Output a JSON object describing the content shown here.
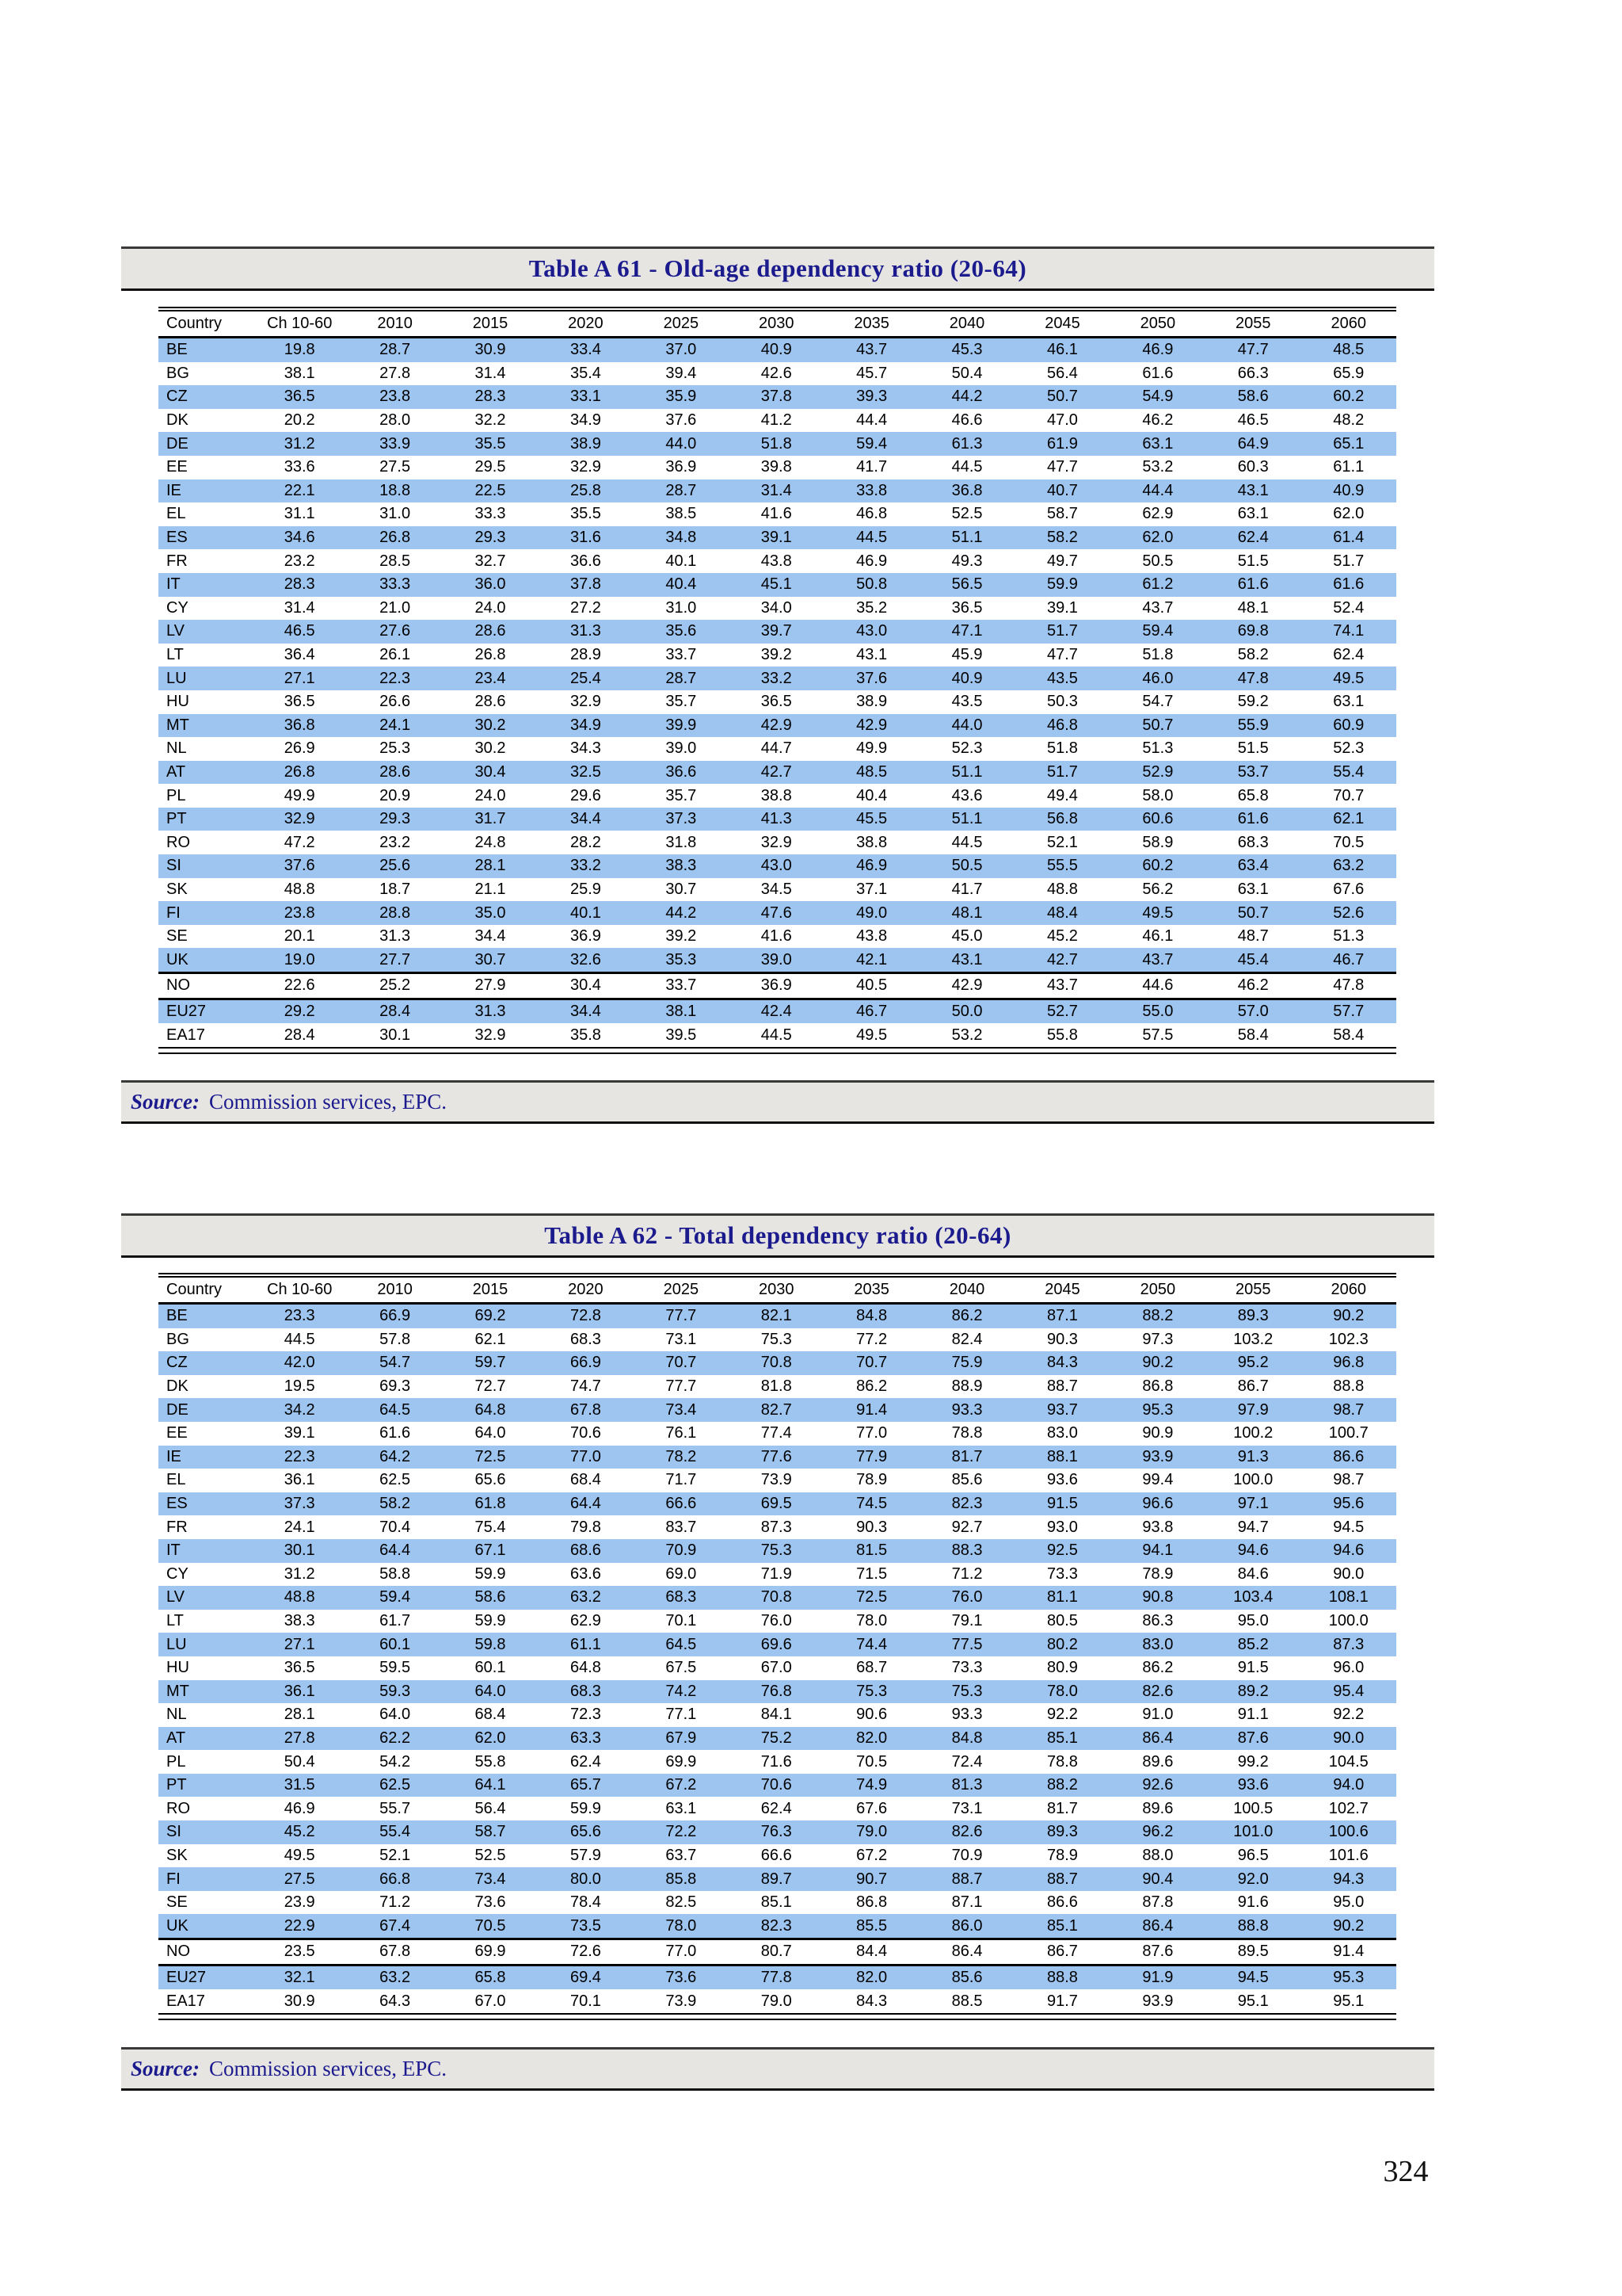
{
  "page": {
    "number": "324"
  },
  "colors": {
    "row_stripe": "#9dc5f0",
    "bar_background": "#e7e5e2",
    "title_text": "#1b1b8e"
  },
  "tables": [
    {
      "title": "Table A 61 - Old-age dependency ratio (20-64)",
      "source_label": "Source:",
      "source_text": "Commission services, EPC.",
      "columns": [
        "Country",
        "Ch 10-60",
        "2010",
        "2015",
        "2020",
        "2025",
        "2030",
        "2035",
        "2040",
        "2045",
        "2050",
        "2055",
        "2060"
      ],
      "group_breaks_after": [
        "UK",
        "NO"
      ],
      "rows": [
        [
          "BE",
          "19.8",
          "28.7",
          "30.9",
          "33.4",
          "37.0",
          "40.9",
          "43.7",
          "45.3",
          "46.1",
          "46.9",
          "47.7",
          "48.5"
        ],
        [
          "BG",
          "38.1",
          "27.8",
          "31.4",
          "35.4",
          "39.4",
          "42.6",
          "45.7",
          "50.4",
          "56.4",
          "61.6",
          "66.3",
          "65.9"
        ],
        [
          "CZ",
          "36.5",
          "23.8",
          "28.3",
          "33.1",
          "35.9",
          "37.8",
          "39.3",
          "44.2",
          "50.7",
          "54.9",
          "58.6",
          "60.2"
        ],
        [
          "DK",
          "20.2",
          "28.0",
          "32.2",
          "34.9",
          "37.6",
          "41.2",
          "44.4",
          "46.6",
          "47.0",
          "46.2",
          "46.5",
          "48.2"
        ],
        [
          "DE",
          "31.2",
          "33.9",
          "35.5",
          "38.9",
          "44.0",
          "51.8",
          "59.4",
          "61.3",
          "61.9",
          "63.1",
          "64.9",
          "65.1"
        ],
        [
          "EE",
          "33.6",
          "27.5",
          "29.5",
          "32.9",
          "36.9",
          "39.8",
          "41.7",
          "44.5",
          "47.7",
          "53.2",
          "60.3",
          "61.1"
        ],
        [
          "IE",
          "22.1",
          "18.8",
          "22.5",
          "25.8",
          "28.7",
          "31.4",
          "33.8",
          "36.8",
          "40.7",
          "44.4",
          "43.1",
          "40.9"
        ],
        [
          "EL",
          "31.1",
          "31.0",
          "33.3",
          "35.5",
          "38.5",
          "41.6",
          "46.8",
          "52.5",
          "58.7",
          "62.9",
          "63.1",
          "62.0"
        ],
        [
          "ES",
          "34.6",
          "26.8",
          "29.3",
          "31.6",
          "34.8",
          "39.1",
          "44.5",
          "51.1",
          "58.2",
          "62.0",
          "62.4",
          "61.4"
        ],
        [
          "FR",
          "23.2",
          "28.5",
          "32.7",
          "36.6",
          "40.1",
          "43.8",
          "46.9",
          "49.3",
          "49.7",
          "50.5",
          "51.5",
          "51.7"
        ],
        [
          "IT",
          "28.3",
          "33.3",
          "36.0",
          "37.8",
          "40.4",
          "45.1",
          "50.8",
          "56.5",
          "59.9",
          "61.2",
          "61.6",
          "61.6"
        ],
        [
          "CY",
          "31.4",
          "21.0",
          "24.0",
          "27.2",
          "31.0",
          "34.0",
          "35.2",
          "36.5",
          "39.1",
          "43.7",
          "48.1",
          "52.4"
        ],
        [
          "LV",
          "46.5",
          "27.6",
          "28.6",
          "31.3",
          "35.6",
          "39.7",
          "43.0",
          "47.1",
          "51.7",
          "59.4",
          "69.8",
          "74.1"
        ],
        [
          "LT",
          "36.4",
          "26.1",
          "26.8",
          "28.9",
          "33.7",
          "39.2",
          "43.1",
          "45.9",
          "47.7",
          "51.8",
          "58.2",
          "62.4"
        ],
        [
          "LU",
          "27.1",
          "22.3",
          "23.4",
          "25.4",
          "28.7",
          "33.2",
          "37.6",
          "40.9",
          "43.5",
          "46.0",
          "47.8",
          "49.5"
        ],
        [
          "HU",
          "36.5",
          "26.6",
          "28.6",
          "32.9",
          "35.7",
          "36.5",
          "38.9",
          "43.5",
          "50.3",
          "54.7",
          "59.2",
          "63.1"
        ],
        [
          "MT",
          "36.8",
          "24.1",
          "30.2",
          "34.9",
          "39.9",
          "42.9",
          "42.9",
          "44.0",
          "46.8",
          "50.7",
          "55.9",
          "60.9"
        ],
        [
          "NL",
          "26.9",
          "25.3",
          "30.2",
          "34.3",
          "39.0",
          "44.7",
          "49.9",
          "52.3",
          "51.8",
          "51.3",
          "51.5",
          "52.3"
        ],
        [
          "AT",
          "26.8",
          "28.6",
          "30.4",
          "32.5",
          "36.6",
          "42.7",
          "48.5",
          "51.1",
          "51.7",
          "52.9",
          "53.7",
          "55.4"
        ],
        [
          "PL",
          "49.9",
          "20.9",
          "24.0",
          "29.6",
          "35.7",
          "38.8",
          "40.4",
          "43.6",
          "49.4",
          "58.0",
          "65.8",
          "70.7"
        ],
        [
          "PT",
          "32.9",
          "29.3",
          "31.7",
          "34.4",
          "37.3",
          "41.3",
          "45.5",
          "51.1",
          "56.8",
          "60.6",
          "61.6",
          "62.1"
        ],
        [
          "RO",
          "47.2",
          "23.2",
          "24.8",
          "28.2",
          "31.8",
          "32.9",
          "38.8",
          "44.5",
          "52.1",
          "58.9",
          "68.3",
          "70.5"
        ],
        [
          "SI",
          "37.6",
          "25.6",
          "28.1",
          "33.2",
          "38.3",
          "43.0",
          "46.9",
          "50.5",
          "55.5",
          "60.2",
          "63.4",
          "63.2"
        ],
        [
          "SK",
          "48.8",
          "18.7",
          "21.1",
          "25.9",
          "30.7",
          "34.5",
          "37.1",
          "41.7",
          "48.8",
          "56.2",
          "63.1",
          "67.6"
        ],
        [
          "FI",
          "23.8",
          "28.8",
          "35.0",
          "40.1",
          "44.2",
          "47.6",
          "49.0",
          "48.1",
          "48.4",
          "49.5",
          "50.7",
          "52.6"
        ],
        [
          "SE",
          "20.1",
          "31.3",
          "34.4",
          "36.9",
          "39.2",
          "41.6",
          "43.8",
          "45.0",
          "45.2",
          "46.1",
          "48.7",
          "51.3"
        ],
        [
          "UK",
          "19.0",
          "27.7",
          "30.7",
          "32.6",
          "35.3",
          "39.0",
          "42.1",
          "43.1",
          "42.7",
          "43.7",
          "45.4",
          "46.7"
        ],
        [
          "NO",
          "22.6",
          "25.2",
          "27.9",
          "30.4",
          "33.7",
          "36.9",
          "40.5",
          "42.9",
          "43.7",
          "44.6",
          "46.2",
          "47.8"
        ],
        [
          "EU27",
          "29.2",
          "28.4",
          "31.3",
          "34.4",
          "38.1",
          "42.4",
          "46.7",
          "50.0",
          "52.7",
          "55.0",
          "57.0",
          "57.7"
        ],
        [
          "EA17",
          "28.4",
          "30.1",
          "32.9",
          "35.8",
          "39.5",
          "44.5",
          "49.5",
          "53.2",
          "55.8",
          "57.5",
          "58.4",
          "58.4"
        ]
      ]
    },
    {
      "title": "Table A 62 - Total dependency ratio (20-64)",
      "source_label": "Source:",
      "source_text": "Commission services, EPC.",
      "columns": [
        "Country",
        "Ch 10-60",
        "2010",
        "2015",
        "2020",
        "2025",
        "2030",
        "2035",
        "2040",
        "2045",
        "2050",
        "2055",
        "2060"
      ],
      "group_breaks_after": [
        "UK",
        "NO"
      ],
      "rows": [
        [
          "BE",
          "23.3",
          "66.9",
          "69.2",
          "72.8",
          "77.7",
          "82.1",
          "84.8",
          "86.2",
          "87.1",
          "88.2",
          "89.3",
          "90.2"
        ],
        [
          "BG",
          "44.5",
          "57.8",
          "62.1",
          "68.3",
          "73.1",
          "75.3",
          "77.2",
          "82.4",
          "90.3",
          "97.3",
          "103.2",
          "102.3"
        ],
        [
          "CZ",
          "42.0",
          "54.7",
          "59.7",
          "66.9",
          "70.7",
          "70.8",
          "70.7",
          "75.9",
          "84.3",
          "90.2",
          "95.2",
          "96.8"
        ],
        [
          "DK",
          "19.5",
          "69.3",
          "72.7",
          "74.7",
          "77.7",
          "81.8",
          "86.2",
          "88.9",
          "88.7",
          "86.8",
          "86.7",
          "88.8"
        ],
        [
          "DE",
          "34.2",
          "64.5",
          "64.8",
          "67.8",
          "73.4",
          "82.7",
          "91.4",
          "93.3",
          "93.7",
          "95.3",
          "97.9",
          "98.7"
        ],
        [
          "EE",
          "39.1",
          "61.6",
          "64.0",
          "70.6",
          "76.1",
          "77.4",
          "77.0",
          "78.8",
          "83.0",
          "90.9",
          "100.2",
          "100.7"
        ],
        [
          "IE",
          "22.3",
          "64.2",
          "72.5",
          "77.0",
          "78.2",
          "77.6",
          "77.9",
          "81.7",
          "88.1",
          "93.9",
          "91.3",
          "86.6"
        ],
        [
          "EL",
          "36.1",
          "62.5",
          "65.6",
          "68.4",
          "71.7",
          "73.9",
          "78.9",
          "85.6",
          "93.6",
          "99.4",
          "100.0",
          "98.7"
        ],
        [
          "ES",
          "37.3",
          "58.2",
          "61.8",
          "64.4",
          "66.6",
          "69.5",
          "74.5",
          "82.3",
          "91.5",
          "96.6",
          "97.1",
          "95.6"
        ],
        [
          "FR",
          "24.1",
          "70.4",
          "75.4",
          "79.8",
          "83.7",
          "87.3",
          "90.3",
          "92.7",
          "93.0",
          "93.8",
          "94.7",
          "94.5"
        ],
        [
          "IT",
          "30.1",
          "64.4",
          "67.1",
          "68.6",
          "70.9",
          "75.3",
          "81.5",
          "88.3",
          "92.5",
          "94.1",
          "94.6",
          "94.6"
        ],
        [
          "CY",
          "31.2",
          "58.8",
          "59.9",
          "63.6",
          "69.0",
          "71.9",
          "71.5",
          "71.2",
          "73.3",
          "78.9",
          "84.6",
          "90.0"
        ],
        [
          "LV",
          "48.8",
          "59.4",
          "58.6",
          "63.2",
          "68.3",
          "70.8",
          "72.5",
          "76.0",
          "81.1",
          "90.8",
          "103.4",
          "108.1"
        ],
        [
          "LT",
          "38.3",
          "61.7",
          "59.9",
          "62.9",
          "70.1",
          "76.0",
          "78.0",
          "79.1",
          "80.5",
          "86.3",
          "95.0",
          "100.0"
        ],
        [
          "LU",
          "27.1",
          "60.1",
          "59.8",
          "61.1",
          "64.5",
          "69.6",
          "74.4",
          "77.5",
          "80.2",
          "83.0",
          "85.2",
          "87.3"
        ],
        [
          "HU",
          "36.5",
          "59.5",
          "60.1",
          "64.8",
          "67.5",
          "67.0",
          "68.7",
          "73.3",
          "80.9",
          "86.2",
          "91.5",
          "96.0"
        ],
        [
          "MT",
          "36.1",
          "59.3",
          "64.0",
          "68.3",
          "74.2",
          "76.8",
          "75.3",
          "75.3",
          "78.0",
          "82.6",
          "89.2",
          "95.4"
        ],
        [
          "NL",
          "28.1",
          "64.0",
          "68.4",
          "72.3",
          "77.1",
          "84.1",
          "90.6",
          "93.3",
          "92.2",
          "91.0",
          "91.1",
          "92.2"
        ],
        [
          "AT",
          "27.8",
          "62.2",
          "62.0",
          "63.3",
          "67.9",
          "75.2",
          "82.0",
          "84.8",
          "85.1",
          "86.4",
          "87.6",
          "90.0"
        ],
        [
          "PL",
          "50.4",
          "54.2",
          "55.8",
          "62.4",
          "69.9",
          "71.6",
          "70.5",
          "72.4",
          "78.8",
          "89.6",
          "99.2",
          "104.5"
        ],
        [
          "PT",
          "31.5",
          "62.5",
          "64.1",
          "65.7",
          "67.2",
          "70.6",
          "74.9",
          "81.3",
          "88.2",
          "92.6",
          "93.6",
          "94.0"
        ],
        [
          "RO",
          "46.9",
          "55.7",
          "56.4",
          "59.9",
          "63.1",
          "62.4",
          "67.6",
          "73.1",
          "81.7",
          "89.6",
          "100.5",
          "102.7"
        ],
        [
          "SI",
          "45.2",
          "55.4",
          "58.7",
          "65.6",
          "72.2",
          "76.3",
          "79.0",
          "82.6",
          "89.3",
          "96.2",
          "101.0",
          "100.6"
        ],
        [
          "SK",
          "49.5",
          "52.1",
          "52.5",
          "57.9",
          "63.7",
          "66.6",
          "67.2",
          "70.9",
          "78.9",
          "88.0",
          "96.5",
          "101.6"
        ],
        [
          "FI",
          "27.5",
          "66.8",
          "73.4",
          "80.0",
          "85.8",
          "89.7",
          "90.7",
          "88.7",
          "88.7",
          "90.4",
          "92.0",
          "94.3"
        ],
        [
          "SE",
          "23.9",
          "71.2",
          "73.6",
          "78.4",
          "82.5",
          "85.1",
          "86.8",
          "87.1",
          "86.6",
          "87.8",
          "91.6",
          "95.0"
        ],
        [
          "UK",
          "22.9",
          "67.4",
          "70.5",
          "73.5",
          "78.0",
          "82.3",
          "85.5",
          "86.0",
          "85.1",
          "86.4",
          "88.8",
          "90.2"
        ],
        [
          "NO",
          "23.5",
          "67.8",
          "69.9",
          "72.6",
          "77.0",
          "80.7",
          "84.4",
          "86.4",
          "86.7",
          "87.6",
          "89.5",
          "91.4"
        ],
        [
          "EU27",
          "32.1",
          "63.2",
          "65.8",
          "69.4",
          "73.6",
          "77.8",
          "82.0",
          "85.6",
          "88.8",
          "91.9",
          "94.5",
          "95.3"
        ],
        [
          "EA17",
          "30.9",
          "64.3",
          "67.0",
          "70.1",
          "73.9",
          "79.0",
          "84.3",
          "88.5",
          "91.7",
          "93.9",
          "95.1",
          "95.1"
        ]
      ]
    }
  ]
}
